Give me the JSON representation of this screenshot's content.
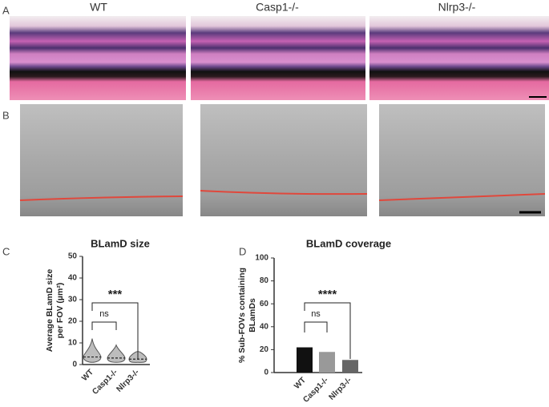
{
  "panels": {
    "a": {
      "label": "A",
      "columns": [
        "WT",
        "Casp1-/-",
        "Nlrp3-/-"
      ]
    },
    "b": {
      "label": "B"
    },
    "c": {
      "label": "C"
    },
    "d": {
      "label": "D"
    }
  },
  "chart_data": [
    {
      "type": "violin",
      "title": "BLamD size",
      "y_label": [
        "Average BLamD size",
        "per FOV (µm²)"
      ],
      "categories": [
        "WT",
        "Casp1-/-",
        "Nlrp3-/-"
      ],
      "medians": [
        3.5,
        3,
        2.5
      ],
      "min": [
        1,
        1,
        1
      ],
      "max": [
        12,
        9,
        6
      ],
      "color": "#888",
      "ylim": [
        0,
        50
      ],
      "yticks": [
        0,
        10,
        20,
        30,
        40,
        50
      ],
      "annotations": [
        "ns",
        "***"
      ]
    },
    {
      "type": "bar",
      "title": "BLamD coverage",
      "y_label": [
        "% Sub-FOVs containing",
        "BLamDs"
      ],
      "categories": [
        "WT",
        "Casp1-/-",
        "Nlrp3-/-"
      ],
      "values": [
        22,
        18,
        11
      ],
      "colors": [
        "#111",
        "#999",
        "#666"
      ],
      "ylim": [
        0,
        100
      ],
      "yticks": [
        0,
        20,
        40,
        60,
        80,
        100
      ],
      "annotations": [
        "ns",
        "****"
      ]
    }
  ]
}
